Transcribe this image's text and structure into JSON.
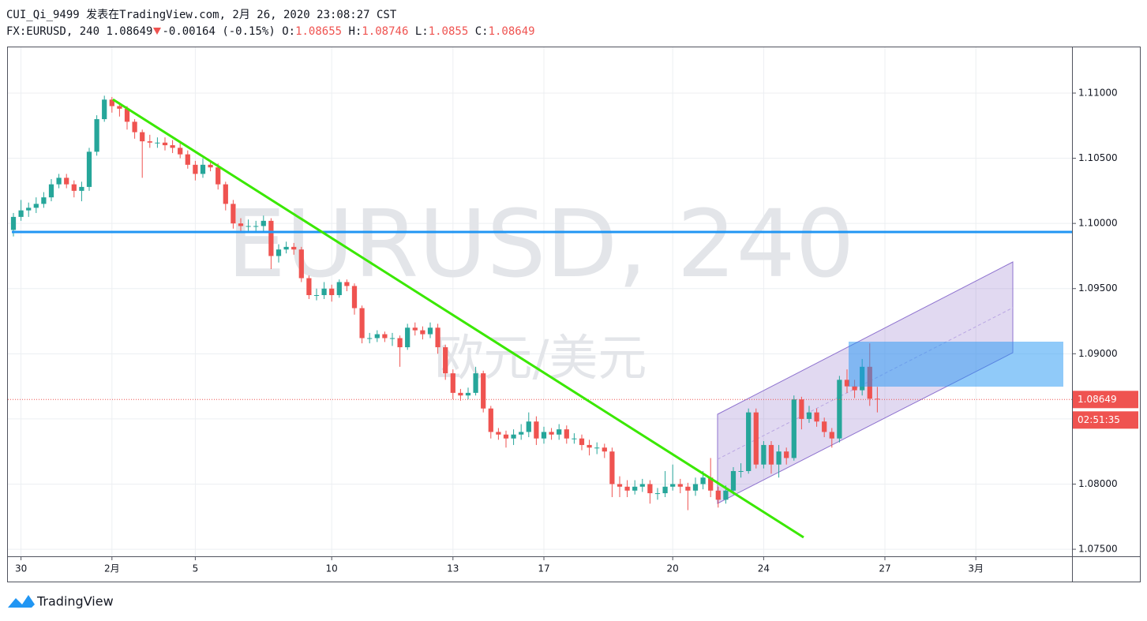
{
  "header": {
    "line1": "CUI_Qi_9499 发表在TradingView.com, 2月 26, 2020 23:08:27 CST",
    "symbol": "FX:EURUSD, 240",
    "change": "-0.00164 (-0.15%)",
    "o": "O:",
    "h": "H:",
    "l": "L:",
    "c": "C:"
  },
  "watermark": {
    "ticker": "EURUSD, 240",
    "name": "欧元/美元"
  },
  "footer": {
    "logo": "TradingView"
  },
  "chart_data": {
    "type": "candlestick",
    "up_color": "#26a69a",
    "down_color": "#ef5350",
    "grid": true,
    "countdown": "02:51:35",
    "xlim": [
      -0.73,
      139.69
    ],
    "ylim": [
      1.07446,
      1.11351
    ],
    "xticks": [
      {
        "value": 1,
        "label": "30"
      },
      {
        "value": 13,
        "label": "2月"
      },
      {
        "value": 24,
        "label": "5"
      },
      {
        "value": 42,
        "label": "10"
      },
      {
        "value": 58,
        "label": "13"
      },
      {
        "value": 70,
        "label": "17"
      },
      {
        "value": 87,
        "label": "20"
      },
      {
        "value": 99,
        "label": "24"
      },
      {
        "value": 115,
        "label": "27"
      },
      {
        "value": 127,
        "label": "3月"
      }
    ],
    "yticks": [
      {
        "value": 1.075,
        "label": "1.07500"
      },
      {
        "value": 1.08,
        "label": "1.08000"
      },
      {
        "value": 1.085,
        "label": "1.08500"
      },
      {
        "value": 1.09,
        "label": "1.09000"
      },
      {
        "value": 1.095,
        "label": "1.09500"
      },
      {
        "value": 1.1,
        "label": "1.10000"
      },
      {
        "value": 1.105,
        "label": "1.10500"
      },
      {
        "value": 1.11,
        "label": "1.11000"
      }
    ],
    "open": [
      1.0995,
      1.1005,
      1.101,
      1.1012,
      1.1015,
      1.102,
      1.103,
      1.1035,
      1.103,
      1.1025,
      1.1028,
      1.1055,
      1.108,
      1.1095,
      1.109,
      1.1088,
      1.1078,
      1.107,
      1.1063,
      1.1062,
      1.1062,
      1.106,
      1.1058,
      1.1053,
      1.1045,
      1.1038,
      1.1045,
      1.1043,
      1.103,
      1.1015,
      1.1,
      1.0998,
      1.0998,
      1.0998,
      1.1002,
      1.0975,
      1.098,
      1.0982,
      1.098,
      1.0958,
      1.0945,
      1.0945,
      1.095,
      1.0945,
      1.0955,
      1.0952,
      1.0935,
      1.0912,
      1.0912,
      1.0915,
      1.0912,
      1.0912,
      1.0905,
      1.092,
      1.0918,
      1.0915,
      1.092,
      1.0905,
      1.0885,
      1.087,
      1.0868,
      1.087,
      1.0885,
      1.0858,
      1.084,
      1.0838,
      1.0835,
      1.0838,
      1.084,
      1.0848,
      1.0835,
      1.084,
      1.0838,
      1.0842,
      1.0835,
      1.0835,
      1.083,
      1.0828,
      1.0828,
      1.0825,
      1.08,
      1.0798,
      1.0795,
      1.0798,
      1.08,
      1.0793,
      1.0793,
      1.0798,
      1.08,
      1.0798,
      1.0795,
      1.08,
      1.0805,
      1.0795,
      1.0788,
      1.0795,
      1.081,
      1.081,
      1.0855,
      1.0815,
      1.083,
      1.0815,
      1.0825,
      1.082,
      1.0865,
      1.085,
      1.0855,
      1.0848,
      1.084,
      1.0835,
      1.088,
      1.0875,
      1.0872,
      1.089,
      1.08655
    ],
    "high": [
      1.1008,
      1.1018,
      1.1016,
      1.102,
      1.1024,
      1.1034,
      1.1038,
      1.1038,
      1.1033,
      1.1032,
      1.1058,
      1.1083,
      1.1098,
      1.1097,
      1.1093,
      1.109,
      1.108,
      1.1072,
      1.1068,
      1.1066,
      1.1066,
      1.1064,
      1.1062,
      1.1056,
      1.1048,
      1.105,
      1.1048,
      1.1046,
      1.1032,
      1.1018,
      1.1004,
      1.1003,
      1.1002,
      1.1006,
      1.1004,
      1.0984,
      1.0986,
      1.0985,
      1.0982,
      1.096,
      1.095,
      1.0955,
      1.0953,
      1.0957,
      1.0957,
      1.0954,
      1.0937,
      1.0916,
      1.0918,
      1.0917,
      1.0916,
      1.0914,
      1.0923,
      1.0924,
      1.0921,
      1.0924,
      1.0923,
      1.0907,
      1.0888,
      1.0873,
      1.0874,
      1.089,
      1.0887,
      1.086,
      1.0843,
      1.0841,
      1.0842,
      1.0846,
      1.0855,
      1.0852,
      1.0844,
      1.0843,
      1.0846,
      1.0845,
      1.0839,
      1.0838,
      1.0834,
      1.0832,
      1.0831,
      1.0828,
      1.0806,
      1.0803,
      1.0803,
      1.0804,
      1.0803,
      1.0797,
      1.081,
      1.0815,
      1.0804,
      1.0801,
      1.0805,
      1.081,
      1.082,
      1.0798,
      1.0799,
      1.0813,
      1.0816,
      1.0858,
      1.0858,
      1.0833,
      1.0833,
      1.083,
      1.0828,
      1.0868,
      1.0867,
      1.086,
      1.0858,
      1.0851,
      1.0843,
      1.0883,
      1.0888,
      1.088,
      1.0896,
      1.0908,
      1.08746
    ],
    "low": [
      1.099,
      1.1002,
      1.1005,
      1.1008,
      1.1012,
      1.1017,
      1.1027,
      1.1027,
      1.102,
      1.1017,
      1.1025,
      1.1052,
      1.1078,
      1.1085,
      1.1082,
      1.1072,
      1.1065,
      1.1035,
      1.1058,
      1.1058,
      1.1056,
      1.1054,
      1.105,
      1.1042,
      1.1033,
      1.1035,
      1.104,
      1.1026,
      1.101,
      1.0996,
      1.0994,
      1.0994,
      1.0994,
      1.0994,
      1.0965,
      1.097,
      1.0977,
      1.0976,
      1.0955,
      1.0942,
      1.0941,
      1.0942,
      1.094,
      1.0943,
      1.0948,
      1.093,
      1.0908,
      1.0908,
      1.0909,
      1.0909,
      1.0906,
      1.089,
      1.0903,
      1.0914,
      1.0911,
      1.0912,
      1.09,
      1.088,
      1.0865,
      1.0864,
      1.0865,
      1.0868,
      1.0855,
      1.0835,
      1.0834,
      1.0828,
      1.083,
      1.0834,
      1.0836,
      1.083,
      1.0831,
      1.0834,
      1.0834,
      1.0831,
      1.0831,
      1.0826,
      1.0822,
      1.0823,
      1.082,
      1.079,
      1.079,
      1.079,
      1.0792,
      1.0794,
      1.0785,
      1.0788,
      1.079,
      1.0795,
      1.0793,
      1.078,
      1.0791,
      1.0796,
      1.079,
      1.0782,
      1.0785,
      1.0792,
      1.0805,
      1.0808,
      1.0812,
      1.0812,
      1.0808,
      1.0805,
      1.0815,
      1.0818,
      1.0842,
      1.0847,
      1.0844,
      1.0836,
      1.0828,
      1.0832,
      1.087,
      1.0866,
      1.0868,
      1.086,
      1.0855
    ],
    "close": [
      1.1005,
      1.101,
      1.1012,
      1.1015,
      1.102,
      1.103,
      1.1035,
      1.103,
      1.1025,
      1.1028,
      1.1055,
      1.108,
      1.1095,
      1.109,
      1.1088,
      1.1078,
      1.107,
      1.1063,
      1.1062,
      1.1062,
      1.106,
      1.1058,
      1.1053,
      1.1045,
      1.1038,
      1.1045,
      1.1043,
      1.103,
      1.1015,
      1.1,
      1.0998,
      1.0998,
      1.0998,
      1.1002,
      1.0975,
      1.098,
      1.0982,
      1.098,
      1.0958,
      1.0945,
      1.0945,
      1.095,
      1.0945,
      1.0955,
      1.0952,
      1.0935,
      1.0912,
      1.0912,
      1.0915,
      1.0912,
      1.0912,
      1.0905,
      1.092,
      1.0918,
      1.0915,
      1.092,
      1.0905,
      1.0885,
      1.087,
      1.0868,
      1.087,
      1.0885,
      1.0858,
      1.084,
      1.0838,
      1.0835,
      1.0838,
      1.084,
      1.0848,
      1.0835,
      1.084,
      1.0838,
      1.0842,
      1.0835,
      1.0835,
      1.083,
      1.0828,
      1.0828,
      1.0825,
      1.08,
      1.0798,
      1.0795,
      1.0798,
      1.08,
      1.0793,
      1.0793,
      1.0798,
      1.08,
      1.0798,
      1.0795,
      1.08,
      1.0805,
      1.0795,
      1.0788,
      1.0795,
      1.081,
      1.081,
      1.0855,
      1.0815,
      1.083,
      1.0815,
      1.0825,
      1.082,
      1.0865,
      1.085,
      1.0855,
      1.0848,
      1.084,
      1.0835,
      1.088,
      1.0875,
      1.0872,
      1.089,
      1.08655,
      1.08649
    ]
  }
}
